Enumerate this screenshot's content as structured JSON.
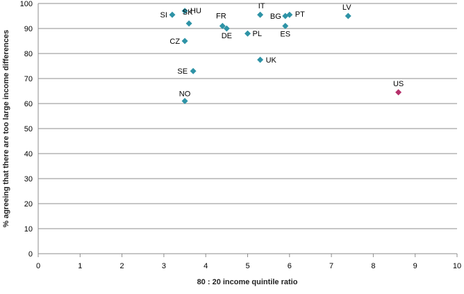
{
  "chart_data": {
    "type": "scatter",
    "xlabel": "80 : 20 income quintile ratio",
    "ylabel": "% agreeing that there are too large income differences",
    "xlim": [
      0,
      10
    ],
    "ylim": [
      0,
      100
    ],
    "xticks": [
      0,
      1,
      2,
      3,
      4,
      5,
      6,
      7,
      8,
      9,
      10
    ],
    "yticks": [
      0,
      10,
      20,
      30,
      40,
      50,
      60,
      70,
      80,
      90,
      100
    ],
    "grid": "horizontal",
    "legend": "none",
    "colors": {
      "default": "#2E93A6",
      "highlight": "#B5306A"
    },
    "points": [
      {
        "label": "SI",
        "x": 3.2,
        "y": 95.5,
        "highlight": false
      },
      {
        "label": "HU",
        "x": 3.5,
        "y": 97.0,
        "highlight": false
      },
      {
        "label": "SK",
        "x": 3.6,
        "y": 92.0,
        "highlight": false
      },
      {
        "label": "CZ",
        "x": 3.5,
        "y": 85.0,
        "highlight": false
      },
      {
        "label": "SE",
        "x": 3.7,
        "y": 73.0,
        "highlight": false
      },
      {
        "label": "NO",
        "x": 3.5,
        "y": 61.0,
        "highlight": false
      },
      {
        "label": "FR",
        "x": 4.4,
        "y": 91.0,
        "highlight": false
      },
      {
        "label": "DE",
        "x": 4.5,
        "y": 90.0,
        "highlight": false
      },
      {
        "label": "PL",
        "x": 5.0,
        "y": 88.0,
        "highlight": false
      },
      {
        "label": "IT",
        "x": 5.3,
        "y": 95.5,
        "highlight": false
      },
      {
        "label": "UK",
        "x": 5.3,
        "y": 77.5,
        "highlight": false
      },
      {
        "label": "BG",
        "x": 5.9,
        "y": 95.0,
        "highlight": false
      },
      {
        "label": "PT",
        "x": 6.0,
        "y": 95.5,
        "highlight": false
      },
      {
        "label": "ES",
        "x": 5.9,
        "y": 91.0,
        "highlight": false
      },
      {
        "label": "LV",
        "x": 7.4,
        "y": 95.0,
        "highlight": false
      },
      {
        "label": "US",
        "x": 8.6,
        "y": 64.5,
        "highlight": true
      }
    ]
  }
}
